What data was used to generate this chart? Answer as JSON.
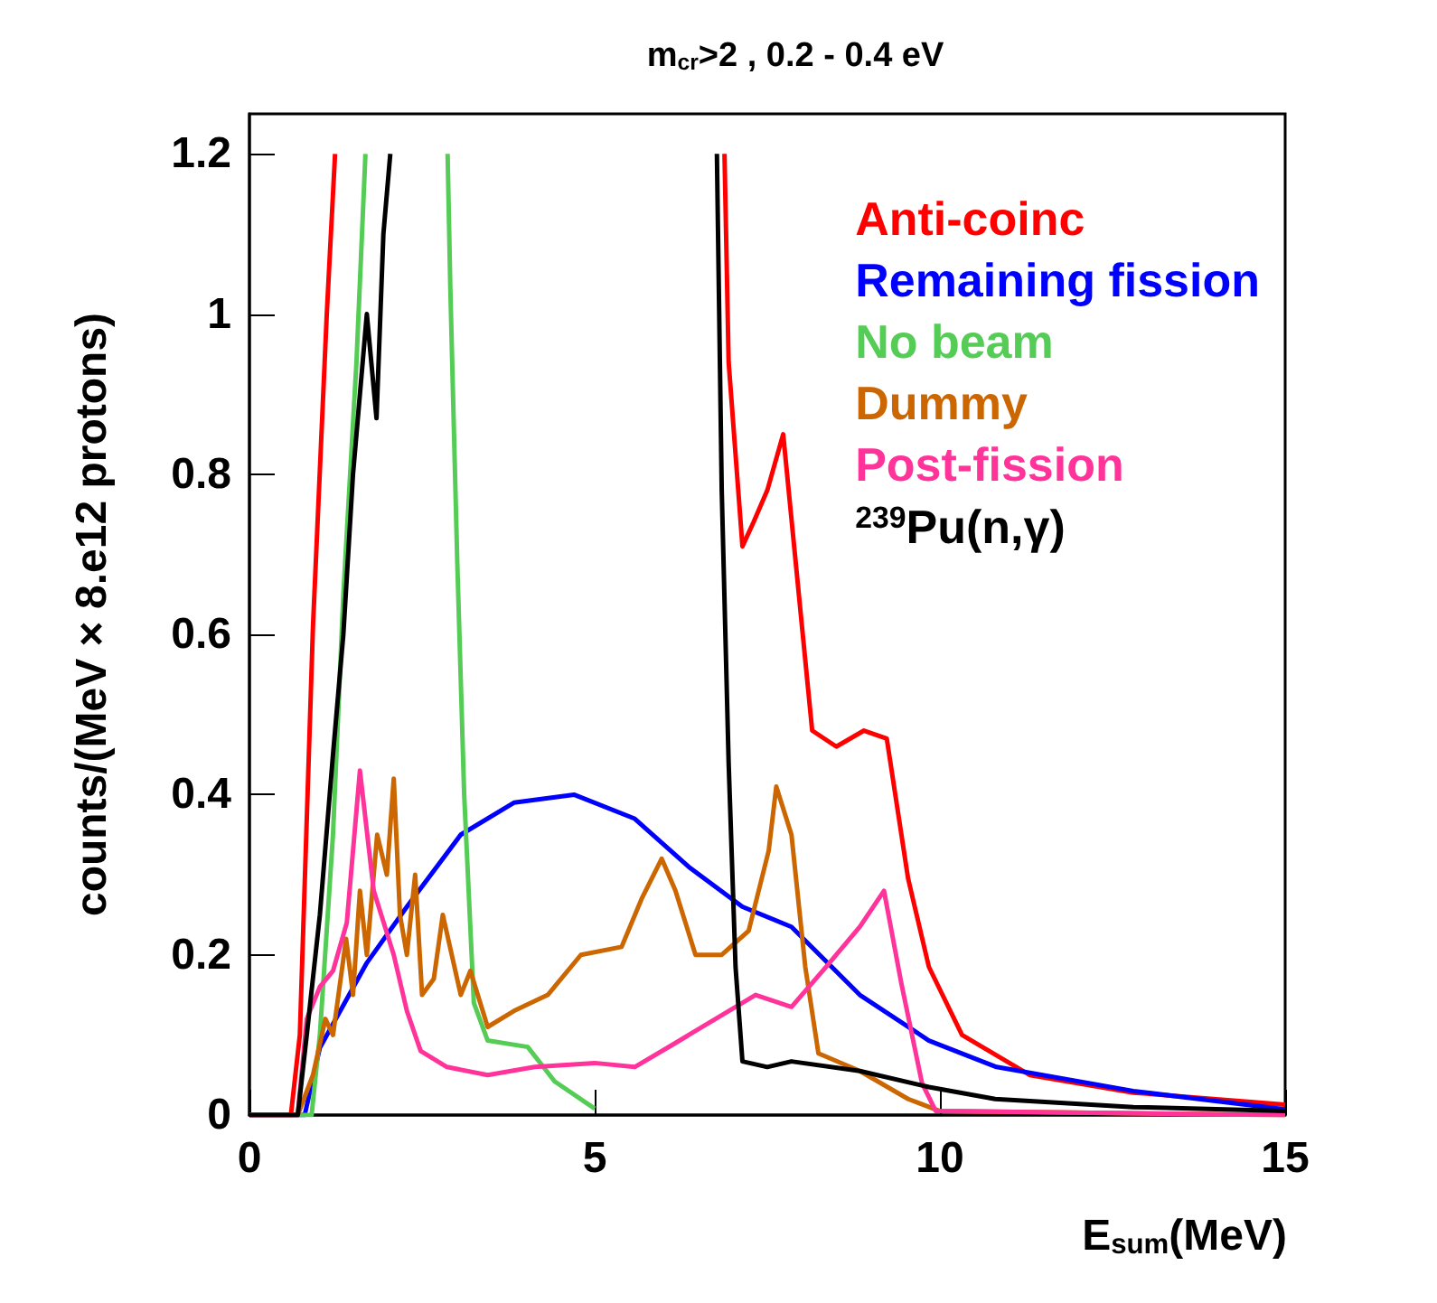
{
  "chart_data": {
    "type": "line",
    "title": "m$_{cr}$>2 , 0.2 - 0.4 eV",
    "xlabel": "E$_{sum}$(MeV)",
    "ylabel": "counts/(MeV × 8.e12 protons)",
    "xlim": [
      0,
      15
    ],
    "xticks": [
      0,
      5,
      10,
      15
    ],
    "ylim": [
      0,
      1.25
    ],
    "yticks": [
      0,
      0.2,
      0.4,
      0.6,
      0.8,
      1,
      1.2
    ],
    "grid": false,
    "legend": "top right",
    "marker": "none",
    "line_style": "solid",
    "series": [
      {
        "name": "Anti-coinc",
        "color": "#ff0000",
        "x": [
          0,
          0.6,
          0.73,
          0.92,
          1.12,
          1.24,
          1.26,
          6.85,
          6.88,
          6.94,
          7.14,
          7.3,
          7.5,
          7.73,
          7.9,
          8.15,
          8.5,
          8.9,
          9.23,
          9.54,
          9.84,
          10.32,
          11.3,
          12.8,
          15
        ],
        "values": [
          0,
          0,
          0.1,
          0.61,
          1.0,
          1.2,
          null,
          null,
          1.2,
          0.94,
          0.71,
          0.74,
          0.78,
          0.85,
          0.7,
          0.48,
          0.46,
          0.48,
          0.47,
          0.295,
          0.185,
          0.1,
          0.05,
          0.028,
          0.013
        ]
      },
      {
        "name": "Remaining fission",
        "color": "#0000ff",
        "x": [
          0,
          0.8,
          1.02,
          1.7,
          2.28,
          3.06,
          3.83,
          4.7,
          5.58,
          6.36,
          7.14,
          7.85,
          8.84,
          9.84,
          10.82,
          12.8,
          15
        ],
        "values": [
          0,
          0,
          0.084,
          0.19,
          0.26,
          0.35,
          0.39,
          0.4,
          0.37,
          0.31,
          0.26,
          0.235,
          0.15,
          0.093,
          0.06,
          0.03,
          0.007
        ]
      },
      {
        "name": "No beam",
        "color": "#55cc55",
        "x": [
          0,
          0.9,
          1.02,
          1.21,
          1.36,
          1.55,
          1.68,
          1.7,
          2.84,
          2.87,
          2.91,
          3.01,
          3.11,
          3.25,
          3.45,
          4.03,
          4.42,
          5.0
        ],
        "values": [
          0,
          0,
          0.1,
          0.35,
          0.65,
          0.94,
          1.2,
          null,
          null,
          1.2,
          1.03,
          0.69,
          0.4,
          0.14,
          0.093,
          0.085,
          0.042,
          0.008
        ]
      },
      {
        "name": "Dummy",
        "color": "#cc6600",
        "x": [
          0,
          0.7,
          0.92,
          1.1,
          1.21,
          1.4,
          1.5,
          1.6,
          1.7,
          1.85,
          1.99,
          2.09,
          2.18,
          2.28,
          2.4,
          2.5,
          2.67,
          2.8,
          3.06,
          3.2,
          3.45,
          3.83,
          4.32,
          4.8,
          5.39,
          5.68,
          5.97,
          6.17,
          6.46,
          6.84,
          7.23,
          7.52,
          7.63,
          7.85,
          8.05,
          8.24,
          8.84,
          9.54,
          10.0,
          15
        ],
        "values": [
          0,
          0,
          0.05,
          0.12,
          0.1,
          0.22,
          0.15,
          0.28,
          0.2,
          0.35,
          0.3,
          0.42,
          0.25,
          0.2,
          0.3,
          0.15,
          0.17,
          0.25,
          0.15,
          0.18,
          0.11,
          0.13,
          0.15,
          0.2,
          0.21,
          0.27,
          0.32,
          0.28,
          0.2,
          0.2,
          0.23,
          0.33,
          0.41,
          0.35,
          0.185,
          0.077,
          0.055,
          0.02,
          0.005,
          0
        ]
      },
      {
        "name": "Post-fission",
        "color": "#ff3399",
        "x": [
          0,
          0.7,
          0.83,
          1.02,
          1.21,
          1.41,
          1.6,
          1.8,
          2.09,
          2.28,
          2.48,
          2.86,
          3.45,
          4.13,
          5.0,
          5.58,
          6.17,
          6.75,
          7.33,
          7.85,
          8.35,
          8.84,
          9.19,
          9.44,
          9.74,
          9.94,
          15
        ],
        "values": [
          0,
          0,
          0.12,
          0.16,
          0.18,
          0.24,
          0.43,
          0.28,
          0.2,
          0.13,
          0.08,
          0.06,
          0.05,
          0.06,
          0.065,
          0.06,
          0.09,
          0.12,
          0.15,
          0.135,
          0.185,
          0.235,
          0.28,
          0.165,
          0.04,
          0.005,
          0
        ]
      },
      {
        "name": "$^{239}$Pu(n,γ)",
        "color": "#000000",
        "x": [
          0,
          0.7,
          0.83,
          1.02,
          1.21,
          1.36,
          1.5,
          1.7,
          1.84,
          1.94,
          2.04,
          2.09,
          6.75,
          6.77,
          6.84,
          6.94,
          7.04,
          7.14,
          7.5,
          7.85,
          8.84,
          9.84,
          10.8,
          12.8,
          15
        ],
        "values": [
          0,
          0,
          0.1,
          0.25,
          0.45,
          0.6,
          0.8,
          1.0,
          0.87,
          1.1,
          1.2,
          null,
          null,
          1.2,
          0.78,
          0.44,
          0.185,
          0.067,
          0.06,
          0.067,
          0.055,
          0.035,
          0.02,
          0.01,
          0.005
        ]
      }
    ]
  }
}
